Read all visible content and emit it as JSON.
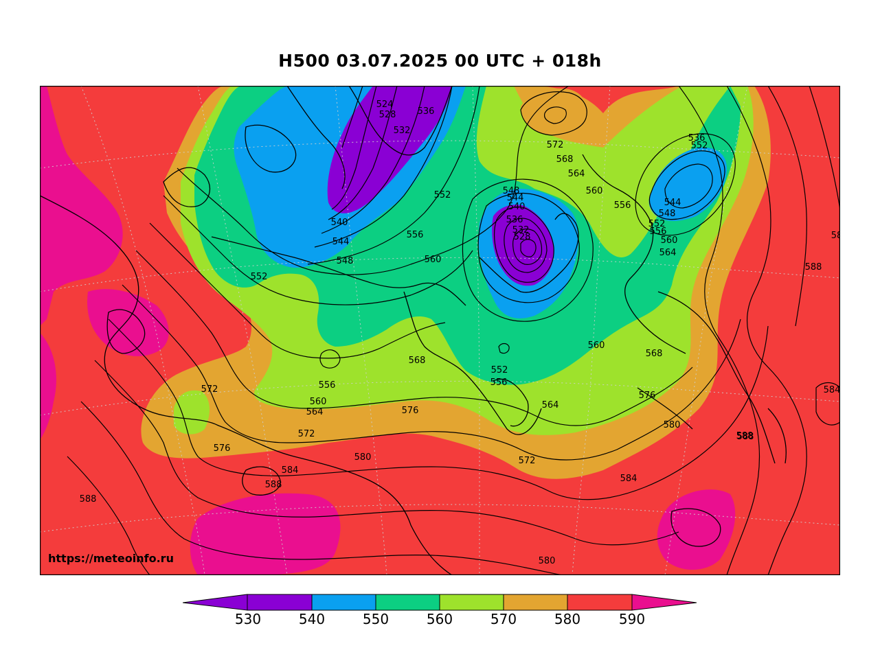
{
  "title": "H500  03.07.2025 00 UTC + 018h",
  "watermark": "https://meteoinfo.ru",
  "colorbar": {
    "ticks": [
      "530",
      "540",
      "550",
      "560",
      "570",
      "580",
      "590"
    ],
    "colors": [
      "#8a00d4",
      "#8a00d4",
      "#0aa0f0",
      "#0ccf82",
      "#9ee22c",
      "#e3a531",
      "#f43c3c",
      "#ea0f8f"
    ]
  },
  "contour_labels": [
    "524",
    "528",
    "532",
    "536",
    "540",
    "544",
    "548",
    "552",
    "556",
    "560",
    "564",
    "568",
    "572",
    "576",
    "580",
    "584",
    "588"
  ],
  "map_labels": [
    {
      "id": "l1",
      "text": "524"
    },
    {
      "id": "l2",
      "text": "528"
    },
    {
      "id": "l3",
      "text": "532"
    },
    {
      "id": "l4",
      "text": "536"
    },
    {
      "id": "l5",
      "text": "540"
    },
    {
      "id": "l6",
      "text": "544"
    },
    {
      "id": "l7",
      "text": "548"
    },
    {
      "id": "l8",
      "text": "552"
    },
    {
      "id": "l9",
      "text": "552"
    },
    {
      "id": "l10",
      "text": "556"
    },
    {
      "id": "l11",
      "text": "560"
    },
    {
      "id": "l12",
      "text": "548"
    },
    {
      "id": "l13",
      "text": "544"
    },
    {
      "id": "l14",
      "text": "540"
    },
    {
      "id": "l15",
      "text": "536"
    },
    {
      "id": "l16",
      "text": "532"
    },
    {
      "id": "l17",
      "text": "528"
    },
    {
      "id": "l18",
      "text": "572"
    },
    {
      "id": "l19",
      "text": "568"
    },
    {
      "id": "l20",
      "text": "564"
    },
    {
      "id": "l21",
      "text": "560"
    },
    {
      "id": "l22",
      "text": "556"
    },
    {
      "id": "l23",
      "text": "536"
    },
    {
      "id": "l24",
      "text": "552"
    },
    {
      "id": "l25",
      "text": "544"
    },
    {
      "id": "l26",
      "text": "548"
    },
    {
      "id": "l27",
      "text": "552"
    },
    {
      "id": "l28",
      "text": "556"
    },
    {
      "id": "l29",
      "text": "560"
    },
    {
      "id": "l30",
      "text": "564"
    },
    {
      "id": "l31",
      "text": "588"
    },
    {
      "id": "l32",
      "text": "560"
    },
    {
      "id": "l33",
      "text": "568"
    },
    {
      "id": "l34",
      "text": "556"
    },
    {
      "id": "l35",
      "text": "560"
    },
    {
      "id": "l36",
      "text": "564"
    },
    {
      "id": "l37",
      "text": "552"
    },
    {
      "id": "l38",
      "text": "556"
    },
    {
      "id": "l39",
      "text": "564"
    },
    {
      "id": "l40",
      "text": "576"
    },
    {
      "id": "l41",
      "text": "572"
    },
    {
      "id": "l42",
      "text": "568"
    },
    {
      "id": "l43",
      "text": "576"
    },
    {
      "id": "l44",
      "text": "580"
    },
    {
      "id": "l45",
      "text": "584"
    },
    {
      "id": "l46",
      "text": "588"
    },
    {
      "id": "l47",
      "text": "572"
    },
    {
      "id": "l48",
      "text": "572"
    },
    {
      "id": "l49",
      "text": "576"
    },
    {
      "id": "l50",
      "text": "580"
    },
    {
      "id": "l51",
      "text": "584"
    },
    {
      "id": "l52",
      "text": "588"
    },
    {
      "id": "l53",
      "text": "588"
    },
    {
      "id": "l54",
      "text": "580"
    },
    {
      "id": "l55",
      "text": "584"
    },
    {
      "id": "l56",
      "text": "58"
    },
    {
      "id": "l57",
      "text": "588"
    },
    {
      "id": "l58",
      "text": "572"
    },
    {
      "id": "l59",
      "text": "564"
    }
  ]
}
